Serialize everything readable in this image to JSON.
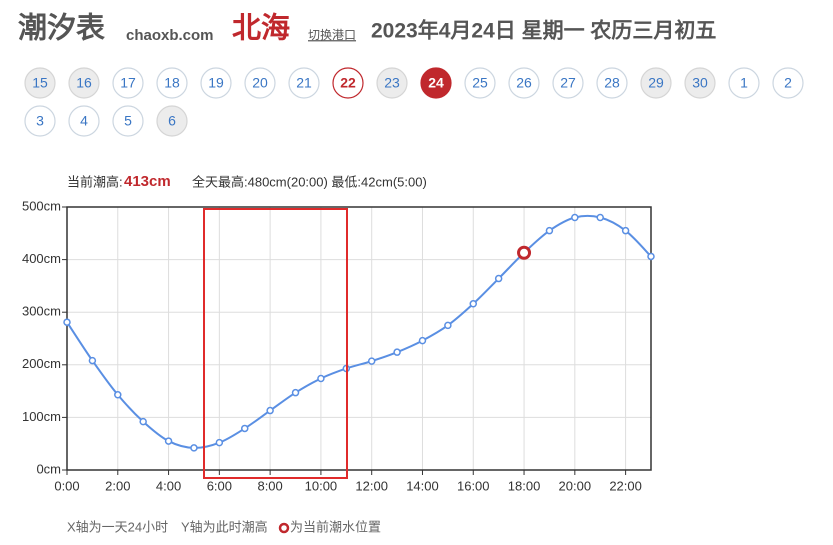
{
  "header": {
    "title": "潮汐表",
    "site": "chaoxb.com",
    "port": "北海",
    "switch": "切换港口",
    "date": "2023年4月24日 星期一 农历三月初五"
  },
  "dates": [
    {
      "label": "15",
      "style": "gray"
    },
    {
      "label": "16",
      "style": "gray"
    },
    {
      "label": "17",
      "style": "plain"
    },
    {
      "label": "18",
      "style": "plain"
    },
    {
      "label": "19",
      "style": "plain"
    },
    {
      "label": "20",
      "style": "plain"
    },
    {
      "label": "21",
      "style": "plain"
    },
    {
      "label": "22",
      "style": "red"
    },
    {
      "label": "23",
      "style": "gray"
    },
    {
      "label": "24",
      "style": "selected"
    },
    {
      "label": "25",
      "style": "plain"
    },
    {
      "label": "26",
      "style": "plain"
    },
    {
      "label": "27",
      "style": "plain"
    },
    {
      "label": "28",
      "style": "plain"
    },
    {
      "label": "29",
      "style": "gray"
    },
    {
      "label": "30",
      "style": "gray"
    },
    {
      "label": "1",
      "style": "plain"
    },
    {
      "label": "2",
      "style": "plain"
    },
    {
      "label": "3",
      "style": "plain"
    },
    {
      "label": "4",
      "style": "plain"
    },
    {
      "label": "5",
      "style": "plain"
    },
    {
      "label": "6",
      "style": "gray"
    }
  ],
  "info": {
    "current_label": "当前潮高:",
    "current_value": "413cm",
    "extremes": "全天最高:480cm(20:00) 最低:42cm(5:00)"
  },
  "footer": {
    "x_note": "X轴为一天24小时",
    "y_note": "Y轴为此时潮高",
    "marker_note": "为当前潮水位置"
  },
  "chart_data": {
    "type": "line",
    "x": [
      0,
      1,
      2,
      3,
      4,
      5,
      6,
      7,
      8,
      9,
      10,
      11,
      12,
      13,
      14,
      15,
      16,
      17,
      18,
      19,
      20,
      21,
      22,
      23
    ],
    "series": [
      {
        "name": "潮高",
        "color": "#5a8fe3",
        "values": [
          281,
          208,
          143,
          92,
          55,
          42,
          52,
          79,
          113,
          147,
          174,
          193,
          207,
          224,
          246,
          275,
          316,
          364,
          413,
          455,
          480,
          480,
          455,
          406
        ]
      }
    ],
    "xlim": [
      0,
      23
    ],
    "xticks": [
      {
        "value": 0,
        "label": "0:00"
      },
      {
        "value": 2,
        "label": "2:00"
      },
      {
        "value": 4,
        "label": "4:00"
      },
      {
        "value": 6,
        "label": "6:00"
      },
      {
        "value": 8,
        "label": "8:00"
      },
      {
        "value": 10,
        "label": "10:00"
      },
      {
        "value": 12,
        "label": "12:00"
      },
      {
        "value": 14,
        "label": "14:00"
      },
      {
        "value": 16,
        "label": "16:00"
      },
      {
        "value": 18,
        "label": "18:00"
      },
      {
        "value": 20,
        "label": "20:00"
      },
      {
        "value": 22,
        "label": "22:00"
      }
    ],
    "ylim": [
      0,
      500
    ],
    "yticks": [
      {
        "value": 0,
        "label": "0cm"
      },
      {
        "value": 100,
        "label": "100cm"
      },
      {
        "value": 200,
        "label": "200cm"
      },
      {
        "value": 300,
        "label": "300cm"
      },
      {
        "value": 400,
        "label": "400cm"
      },
      {
        "value": 500,
        "label": "500cm"
      }
    ],
    "grid": true,
    "highlight": {
      "x": 18,
      "color": "#c0282d"
    }
  }
}
